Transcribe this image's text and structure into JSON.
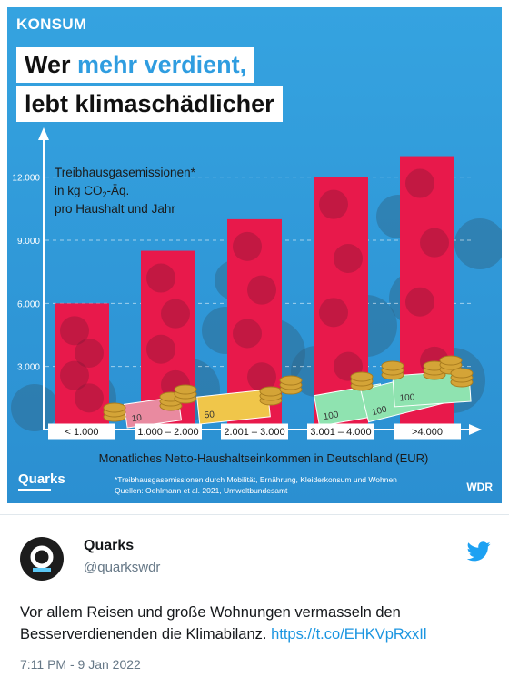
{
  "kicker": "KONSUM",
  "title_part1": "Wer ",
  "title_accent": "mehr verdient,",
  "title_line2": "lebt klimaschädlicher",
  "legend_line1": "Treibhausgasemissionen*",
  "legend_line2_prefix": "in kg CO",
  "legend_line2_sub": "2",
  "legend_line2_suffix": "-Äq.",
  "legend_line3": "pro Haushalt und Jahr",
  "xlabel": "Monatliches Netto-Haushaltseinkommen in Deutschland (EUR)",
  "footnote_line1": "*Treibhausgasemissionen durch Mobilität, Ernährung, Kleiderkonsum und Wohnen",
  "footnote_line2": "Quellen: Oehlmann et al. 2021, Umweltbundesamt",
  "brand_left": "Quarks",
  "brand_right": "WDR",
  "banknote_values": [
    "10",
    "50",
    "100",
    "100",
    "100"
  ],
  "chart_data": {
    "type": "bar",
    "categories": [
      "< 1.000",
      "1.000 – 2.000",
      "2.001 – 3.000",
      "3.001 – 4.000",
      ">4.000"
    ],
    "values": [
      6000,
      8500,
      10000,
      12000,
      13000
    ],
    "yticks": [
      3000,
      6000,
      9000,
      12000
    ],
    "ytick_labels": [
      "3.000",
      "6.000",
      "9.000",
      "12.000"
    ],
    "ylim": [
      0,
      13500
    ],
    "grid": true,
    "bar_color": "#e8194b"
  },
  "tweet": {
    "author": "Quarks",
    "handle": "@quarkswdr",
    "text": "Vor allem Reisen und große Wohnungen vermasseln den Besserverdienenden die Klimabilanz. ",
    "link": "https://t.co/EHKVpRxxIl",
    "timestamp": "7:11 PM - 9 Jan 2022"
  },
  "colors": {
    "background_blue": "#2f9ad9",
    "bar_red": "#e8194b",
    "link_blue": "#1b95e0"
  }
}
